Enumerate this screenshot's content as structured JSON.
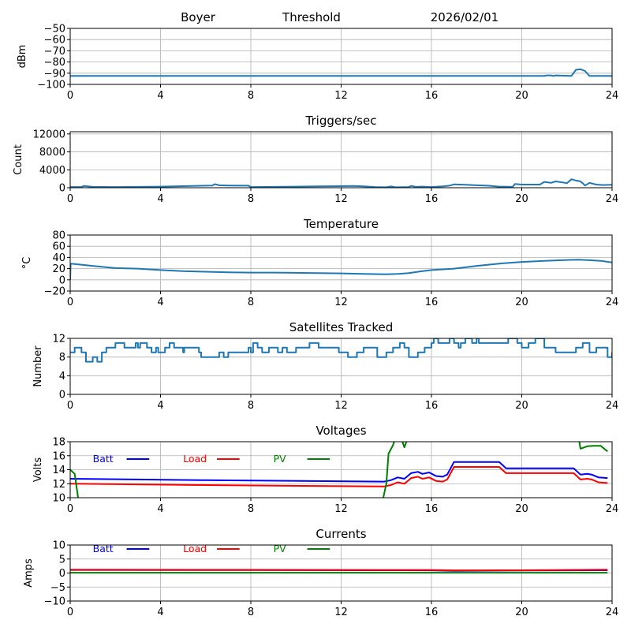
{
  "header": {
    "station": "Boyer",
    "mode": "Threshold",
    "date": "2026/02/01"
  },
  "chart_data": [
    {
      "id": "signal",
      "type": "line",
      "title": "",
      "xlabel": "",
      "ylabel": "dBm",
      "xlim": [
        0,
        24
      ],
      "ylim": [
        -100,
        -50
      ],
      "xticks": [
        0,
        4,
        8,
        12,
        16,
        20,
        24
      ],
      "yticks": [
        -100,
        -90,
        -80,
        -70,
        -60,
        -50
      ],
      "ytick_labels": [
        "−100",
        "−90",
        "−80",
        "−70",
        "−60",
        "−50"
      ],
      "grid": true,
      "series": [
        {
          "name": "dBm",
          "color": "#1f77b4",
          "step": false,
          "x": [
            0,
            21.0,
            21.1,
            21.3,
            21.4,
            21.5,
            22.2,
            22.4,
            22.6,
            22.8,
            23.0,
            24
          ],
          "y": [
            -92.5,
            -92.5,
            -92,
            -92,
            -92.5,
            -92,
            -92.5,
            -87,
            -86.5,
            -88,
            -92.5,
            -92.5
          ]
        }
      ]
    },
    {
      "id": "triggers",
      "type": "line",
      "title": "Triggers/sec",
      "xlabel": "",
      "ylabel": "Count",
      "xlim": [
        0,
        24
      ],
      "ylim": [
        0,
        12500
      ],
      "xticks": [
        0,
        4,
        8,
        12,
        16,
        20,
        24
      ],
      "yticks": [
        0,
        4000,
        8000,
        12000
      ],
      "ytick_labels": [
        "0",
        "4000",
        "8000",
        "12000"
      ],
      "grid": true,
      "series": [
        {
          "name": "Count",
          "color": "#1f77b4",
          "step": false,
          "x": [
            0,
            0.5,
            0.6,
            1,
            2,
            3,
            4,
            5,
            6,
            6.3,
            6.4,
            6.6,
            7,
            7.9,
            8.0,
            9,
            10,
            11,
            12,
            12.5,
            13,
            13.5,
            14,
            14.2,
            14.4,
            15,
            15.1,
            15.3,
            15.6,
            16,
            16.5,
            16.8,
            17,
            17.5,
            18,
            18.5,
            19,
            19.6,
            19.7,
            20,
            20.8,
            21,
            21.3,
            21.5,
            21.8,
            22.0,
            22.2,
            22.4,
            22.6,
            22.7,
            22.8,
            23.0,
            23.3,
            23.6,
            24
          ],
          "y": [
            150,
            150,
            400,
            200,
            150,
            200,
            250,
            350,
            450,
            500,
            800,
            550,
            500,
            450,
            150,
            200,
            250,
            300,
            350,
            400,
            300,
            150,
            100,
            300,
            100,
            150,
            400,
            200,
            250,
            150,
            300,
            450,
            750,
            650,
            550,
            450,
            250,
            200,
            850,
            700,
            700,
            1300,
            1100,
            1400,
            1200,
            1000,
            1900,
            1600,
            1400,
            1000,
            500,
            1100,
            700,
            600,
            650
          ]
        }
      ]
    },
    {
      "id": "temperature",
      "type": "line",
      "title": "Temperature",
      "xlabel": "",
      "ylabel": "°C",
      "xlim": [
        0,
        24
      ],
      "ylim": [
        -20,
        80
      ],
      "xticks": [
        0,
        4,
        8,
        12,
        16,
        20,
        24
      ],
      "yticks": [
        -20,
        0,
        20,
        40,
        60,
        80
      ],
      "ytick_labels": [
        "−20",
        "0",
        "20",
        "40",
        "60",
        "80"
      ],
      "grid": true,
      "series": [
        {
          "name": "°C",
          "color": "#1f77b4",
          "step": false,
          "x": [
            0,
            0.02,
            0.5,
            1,
            1.5,
            2,
            3,
            4,
            5,
            6,
            7,
            8,
            9,
            10,
            11,
            12,
            13,
            14,
            14.5,
            15,
            15.5,
            16,
            17,
            18,
            19,
            20,
            21,
            22,
            22.5,
            23,
            23.5,
            24
          ],
          "y": [
            0,
            29,
            27,
            25,
            23,
            21,
            20,
            17.5,
            15.5,
            14.5,
            13.5,
            13,
            13,
            12.5,
            12,
            11.5,
            10.5,
            10,
            10.5,
            12,
            15,
            17.5,
            20,
            25,
            29,
            32,
            34,
            35.5,
            36,
            35,
            34,
            31
          ]
        }
      ]
    },
    {
      "id": "satellites",
      "type": "line",
      "title": "Satellites Tracked",
      "xlabel": "",
      "ylabel": "Number",
      "xlim": [
        0,
        24
      ],
      "ylim": [
        0,
        12
      ],
      "xticks": [
        0,
        4,
        8,
        12,
        16,
        20,
        24
      ],
      "yticks": [
        0,
        4,
        8,
        12
      ],
      "ytick_labels": [
        "0",
        "4",
        "8",
        "12"
      ],
      "grid": true,
      "series": [
        {
          "name": "Number",
          "color": "#1f77b4",
          "step": true,
          "x": [
            0,
            0.2,
            0.5,
            0.7,
            1.0,
            1.2,
            1.4,
            1.6,
            2.0,
            2.4,
            2.9,
            3.0,
            3.1,
            3.4,
            3.6,
            3.8,
            3.9,
            4.2,
            4.4,
            4.6,
            5.0,
            5.05,
            5.7,
            5.8,
            6.2,
            6.6,
            6.8,
            7.0,
            7.4,
            7.9,
            8.0,
            8.1,
            8.3,
            8.5,
            8.6,
            8.8,
            9.2,
            9.4,
            9.6,
            10.0,
            10.4,
            10.6,
            11.0,
            11.3,
            11.9,
            12.3,
            12.7,
            13.0,
            13.6,
            14.0,
            14.3,
            14.6,
            14.8,
            15.0,
            15.4,
            15.7,
            16.0,
            16.1,
            16.3,
            16.8,
            17.0,
            17.2,
            17.3,
            17.5,
            17.8,
            18.0,
            18.1,
            18.4,
            19.2,
            19.4,
            19.6,
            19.8,
            20.0,
            20.3,
            20.6,
            20.8,
            21.0,
            21.5,
            22.2,
            22.4,
            22.7,
            23.0,
            23.3,
            23.7,
            23.8,
            24.0
          ],
          "y": [
            9,
            10,
            9,
            7,
            8,
            7,
            9,
            10,
            11,
            10,
            11,
            10,
            11,
            10,
            9,
            10,
            9,
            10,
            11,
            10,
            9,
            10,
            9,
            8,
            8,
            9,
            8,
            9,
            9,
            10,
            9,
            11,
            10,
            9,
            9,
            10,
            9,
            10,
            9,
            10,
            10,
            11,
            10,
            10,
            9,
            8,
            9,
            10,
            8,
            9,
            10,
            11,
            10,
            8,
            9,
            10,
            11,
            12,
            11,
            12,
            11,
            10,
            11,
            12,
            11,
            12,
            11,
            11,
            11,
            12,
            12,
            11,
            10,
            11,
            12,
            12,
            10,
            9,
            9,
            10,
            11,
            9,
            10,
            10,
            8,
            9
          ]
        }
      ]
    },
    {
      "id": "voltages",
      "type": "line",
      "title": "Voltages",
      "xlabel": "",
      "ylabel": "Volts",
      "xlim": [
        0,
        24
      ],
      "ylim": [
        10,
        18
      ],
      "xticks": [
        0,
        4,
        8,
        12,
        16,
        20,
        24
      ],
      "yticks": [
        10,
        12,
        14,
        16,
        18
      ],
      "ytick_labels": [
        "10",
        "12",
        "14",
        "16",
        "18"
      ],
      "grid": true,
      "legend": "inline-top",
      "series": [
        {
          "name": "Batt",
          "color": "#0000ff",
          "x": [
            0,
            6,
            13.9,
            14.2,
            14.5,
            14.8,
            15.1,
            15.4,
            15.6,
            15.9,
            16.2,
            16.5,
            16.7,
            17.0,
            19.0,
            19.3,
            22.3,
            22.6,
            22.9,
            23.1,
            23.4,
            23.8
          ],
          "y": [
            12.7,
            12.5,
            12.3,
            12.5,
            12.9,
            12.7,
            13.5,
            13.7,
            13.4,
            13.6,
            13.1,
            13.0,
            13.3,
            15.1,
            15.1,
            14.2,
            14.2,
            13.3,
            13.4,
            13.3,
            12.9,
            12.8
          ]
        },
        {
          "name": "Load",
          "color": "#ff0000",
          "x": [
            0,
            6,
            13.9,
            14.2,
            14.5,
            14.8,
            15.1,
            15.4,
            15.6,
            15.9,
            16.2,
            16.5,
            16.7,
            17.0,
            19.0,
            19.3,
            22.3,
            22.6,
            22.9,
            23.1,
            23.4,
            23.8
          ],
          "y": [
            12.0,
            11.8,
            11.6,
            11.8,
            12.2,
            12.0,
            12.8,
            13.0,
            12.7,
            12.9,
            12.4,
            12.3,
            12.6,
            14.4,
            14.4,
            13.5,
            13.5,
            12.6,
            12.7,
            12.6,
            12.2,
            12.1
          ]
        },
        {
          "name": "PV",
          "color": "#008000",
          "x": [
            0,
            0.2,
            0.35,
            0.4,
            13.8,
            14.0,
            14.1,
            14.3,
            14.4,
            14.6,
            14.8,
            15.0,
            22.5,
            22.6,
            22.9,
            23.2,
            23.5,
            23.8
          ],
          "y": [
            14.0,
            13.4,
            10.0,
            9.0,
            9.0,
            12.0,
            16.3,
            17.5,
            18.5,
            19.0,
            17.2,
            19.0,
            19.0,
            17.0,
            17.35,
            17.4,
            17.4,
            16.6
          ]
        }
      ]
    },
    {
      "id": "currents",
      "type": "line",
      "title": "Currents",
      "xlabel": "",
      "ylabel": "Amps",
      "xlim": [
        0,
        24
      ],
      "ylim": [
        -10,
        10
      ],
      "xticks": [
        0,
        4,
        8,
        12,
        16,
        20,
        24
      ],
      "yticks": [
        -10,
        -5,
        0,
        5,
        10
      ],
      "ytick_labels": [
        "−10",
        "−5",
        "0",
        "5",
        "10"
      ],
      "grid": true,
      "legend": "inline-top",
      "series": [
        {
          "name": "Batt",
          "color": "#0000ff",
          "x": [
            0,
            8,
            14,
            16,
            17,
            20,
            23.8
          ],
          "y": [
            1.1,
            1.05,
            1.0,
            0.95,
            0.8,
            0.9,
            1.0
          ]
        },
        {
          "name": "Load",
          "color": "#ff0000",
          "x": [
            0,
            8,
            14,
            16,
            17,
            20,
            23.8
          ],
          "y": [
            1.2,
            1.15,
            1.1,
            1.1,
            0.95,
            1.0,
            1.2
          ]
        },
        {
          "name": "PV",
          "color": "#008000",
          "x": [
            0,
            23.8
          ],
          "y": [
            0.1,
            0.1
          ]
        }
      ]
    }
  ]
}
